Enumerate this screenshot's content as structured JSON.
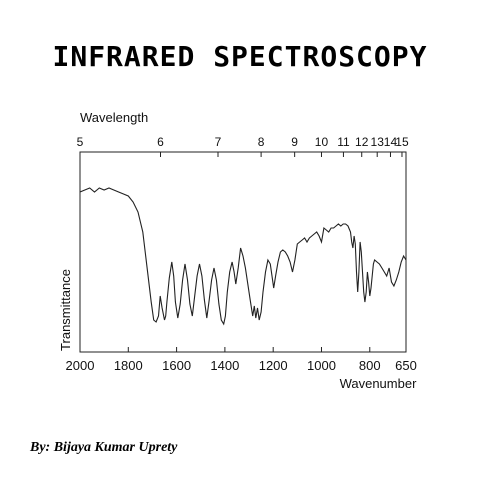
{
  "header": {
    "title": "INFRARED SPECTROSCOPY"
  },
  "footer": {
    "author": "By: Bijaya Kumar Uprety"
  },
  "chart_data": {
    "type": "line",
    "title": "",
    "top_axis": {
      "label": "Wavelength",
      "ticks": [
        5,
        6,
        7,
        8,
        9,
        10,
        11,
        12,
        13,
        14,
        15
      ]
    },
    "x_axis": {
      "label": "Wavenumber",
      "tick_values": [
        2000,
        1800,
        1600,
        1400,
        1200,
        1000,
        800,
        650
      ],
      "xlim": [
        2000,
        650
      ]
    },
    "y_axis": {
      "label": "Transmittance"
    },
    "grid": false,
    "series": [
      {
        "x": [
          2000,
          1980,
          1960,
          1940,
          1920,
          1900,
          1880,
          1860,
          1840,
          1820,
          1800,
          1780,
          1760,
          1740,
          1720,
          1705,
          1695,
          1685,
          1675,
          1668,
          1660,
          1650,
          1645,
          1640,
          1630,
          1620,
          1612,
          1605,
          1595,
          1585,
          1575,
          1565,
          1555,
          1545,
          1535,
          1525,
          1515,
          1505,
          1495,
          1485,
          1475,
          1465,
          1455,
          1445,
          1435,
          1425,
          1415,
          1405,
          1398,
          1390,
          1380,
          1370,
          1362,
          1355,
          1345,
          1335,
          1325,
          1315,
          1305,
          1295,
          1285,
          1278,
          1272,
          1265,
          1258,
          1250,
          1242,
          1232,
          1222,
          1212,
          1205,
          1198,
          1190,
          1180,
          1170,
          1160,
          1150,
          1140,
          1130,
          1120,
          1110,
          1100,
          1090,
          1080,
          1070,
          1060,
          1050,
          1040,
          1030,
          1020,
          1010,
          1000,
          990,
          980,
          970,
          960,
          950,
          940,
          930,
          920,
          910,
          900,
          890,
          880,
          875,
          870,
          865,
          860,
          855,
          850,
          845,
          840,
          835,
          830,
          825,
          820,
          815,
          810,
          805,
          800,
          795,
          790,
          785,
          780,
          770,
          760,
          750,
          740,
          730,
          720,
          710,
          700,
          690,
          680,
          670,
          660,
          650
        ],
        "y": [
          0.8,
          0.81,
          0.82,
          0.8,
          0.82,
          0.81,
          0.82,
          0.81,
          0.8,
          0.79,
          0.78,
          0.75,
          0.7,
          0.6,
          0.4,
          0.25,
          0.16,
          0.15,
          0.18,
          0.28,
          0.22,
          0.16,
          0.18,
          0.25,
          0.37,
          0.45,
          0.38,
          0.25,
          0.17,
          0.24,
          0.36,
          0.44,
          0.36,
          0.24,
          0.18,
          0.28,
          0.38,
          0.44,
          0.38,
          0.26,
          0.17,
          0.26,
          0.36,
          0.42,
          0.36,
          0.24,
          0.16,
          0.14,
          0.18,
          0.3,
          0.4,
          0.45,
          0.4,
          0.34,
          0.42,
          0.52,
          0.48,
          0.42,
          0.34,
          0.26,
          0.18,
          0.23,
          0.17,
          0.22,
          0.16,
          0.2,
          0.3,
          0.4,
          0.46,
          0.44,
          0.38,
          0.32,
          0.38,
          0.45,
          0.5,
          0.51,
          0.5,
          0.48,
          0.45,
          0.4,
          0.46,
          0.54,
          0.55,
          0.56,
          0.57,
          0.55,
          0.57,
          0.58,
          0.59,
          0.6,
          0.58,
          0.55,
          0.62,
          0.61,
          0.6,
          0.62,
          0.62,
          0.63,
          0.64,
          0.63,
          0.64,
          0.64,
          0.63,
          0.6,
          0.55,
          0.52,
          0.58,
          0.54,
          0.4,
          0.3,
          0.4,
          0.55,
          0.5,
          0.4,
          0.3,
          0.25,
          0.3,
          0.4,
          0.35,
          0.28,
          0.32,
          0.38,
          0.44,
          0.46,
          0.45,
          0.44,
          0.42,
          0.4,
          0.38,
          0.42,
          0.35,
          0.33,
          0.36,
          0.4,
          0.45,
          0.48,
          0.46
        ]
      }
    ]
  }
}
